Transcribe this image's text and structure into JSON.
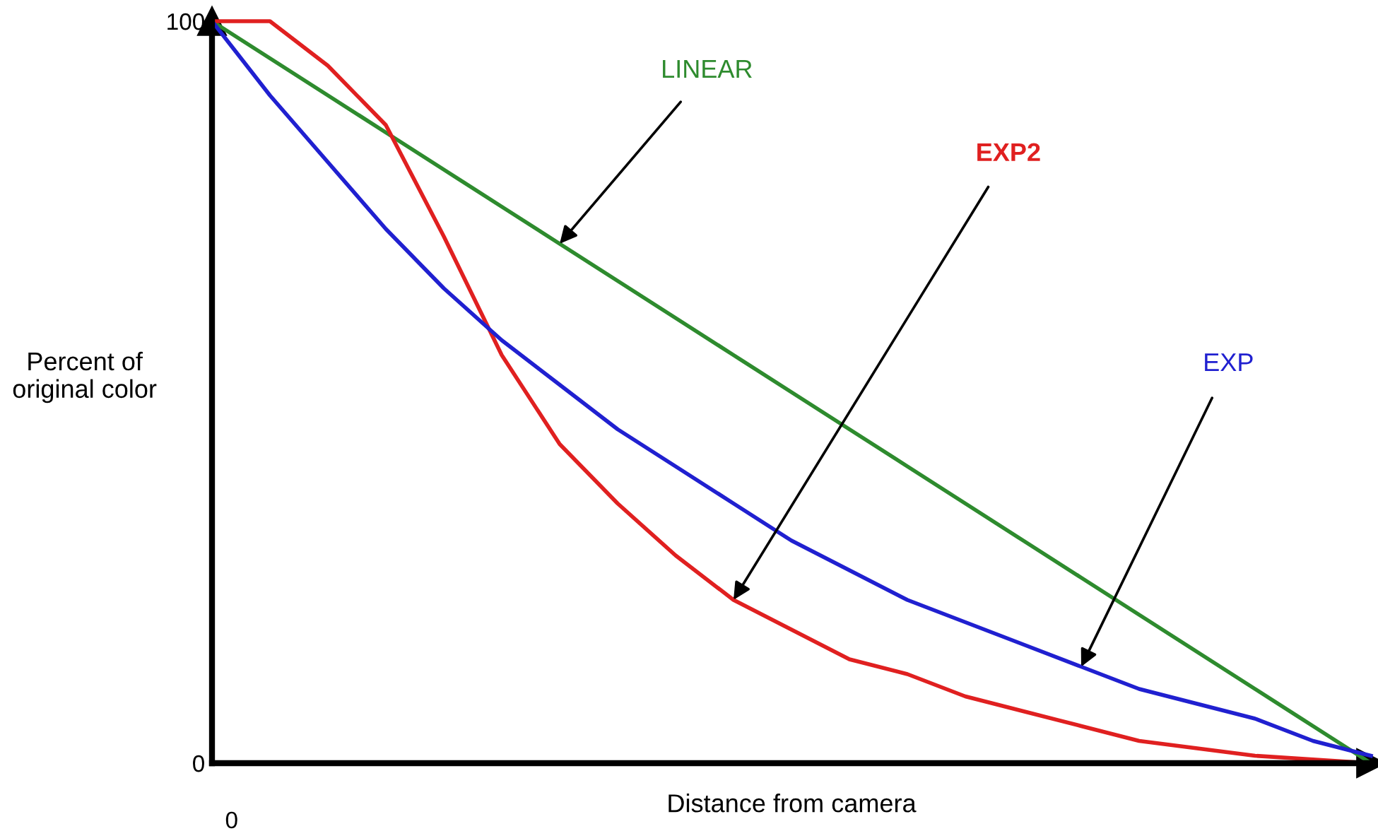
{
  "chart_data": {
    "type": "line",
    "xlabel": "Distance from camera",
    "ylabel": "Percent of\noriginal color",
    "categories": [
      null,
      null,
      null,
      null,
      null,
      null,
      null,
      null,
      null,
      null,
      null,
      null,
      null,
      null,
      null,
      null,
      null,
      null,
      null,
      null,
      null
    ],
    "series": [
      {
        "name": "LINEAR",
        "color": "#2e8b2e",
        "values": [
          100,
          95,
          90,
          85,
          80,
          75,
          70,
          65,
          60,
          55,
          50,
          45,
          40,
          35,
          30,
          25,
          20,
          15,
          10,
          5,
          0
        ]
      },
      {
        "name": "EXP2",
        "color": "#e02020",
        "values": [
          100,
          100,
          94,
          86,
          71,
          55,
          43,
          35,
          28,
          22,
          18,
          14,
          12,
          9,
          7,
          5,
          3,
          2,
          1,
          0.5,
          0
        ]
      },
      {
        "name": "EXP",
        "color": "#2020d0",
        "values": [
          100,
          90,
          81,
          72,
          64,
          57,
          51,
          45,
          40,
          35,
          30,
          26,
          22,
          19,
          16,
          13,
          10,
          8,
          6,
          3,
          1
        ]
      }
    ],
    "ylim": [
      0,
      100
    ],
    "yticks": [
      0,
      100
    ],
    "annotations": [
      "0"
    ],
    "grid": false,
    "legend": false,
    "marker": "none",
    "line_style": "solid"
  }
}
